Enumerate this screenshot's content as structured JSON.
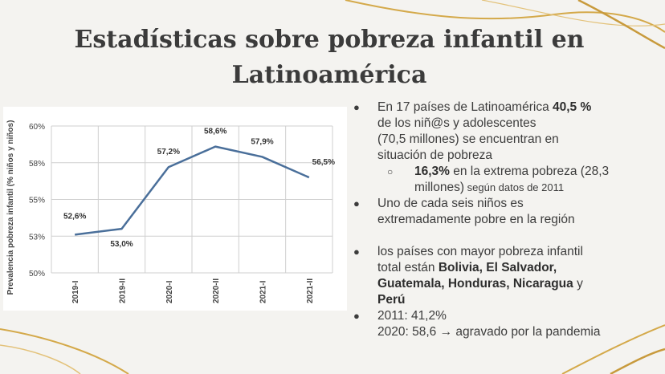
{
  "slide": {
    "title_line1": "Estadísticas sobre pobreza infantil en",
    "title_line2": "Latinoamérica"
  },
  "bullets": {
    "b1_pre": "En 17 países de Latinoamérica ",
    "b1_bold": "40,5 %",
    "b1_rest1": "de los niñ@s  y adolescentes",
    "b1_rest2": "(70,5 millones) se encuentran en",
    "b1_rest3": "situación de pobreza",
    "b1_sub_bold": "16,3%",
    "b1_sub_rest": " en la extrema pobreza (28,3",
    "b1_sub_rest2": "millones)",
    "b1_sub_small": " según datos de 2011",
    "b2_line1": "Uno de cada seis niños es",
    "b2_line2": "extremadamente pobre en la región",
    "b3_line1": "los países con mayor pobreza infantil",
    "b3_pre": "total están ",
    "b3_bold1": "Bolivia, El Salvador,",
    "b3_bold2": "Guatemala, Honduras, Nicaragua",
    "b3_y": " y",
    "b3_bold3": "Perú",
    "b4_line1": "2011: 41,2%",
    "b4_line2": "2020: 58,6 → agravado por la pandemia",
    "bullet_glyph": "●",
    "sub_glyph": "○"
  },
  "chart_data": {
    "type": "line",
    "categories": [
      "2019-I",
      "2019-II",
      "2020-I",
      "2020-II",
      "2021-I",
      "2021-II"
    ],
    "values": [
      52.6,
      53.0,
      57.2,
      58.6,
      57.9,
      56.5
    ],
    "data_labels": [
      "52,6%",
      "53,0%",
      "57,2%",
      "58,6%",
      "57,9%",
      "56,5%"
    ],
    "ylabel": "Prevalencia pobreza infantil (% niños y niños)",
    "ylim": [
      50,
      60
    ],
    "yticks": [
      50,
      52.5,
      55,
      57.5,
      60
    ],
    "ytick_labels": [
      "50%",
      "53%",
      "55%",
      "58%",
      "60%"
    ],
    "grid": true,
    "line_color": "#4a6f9a"
  }
}
